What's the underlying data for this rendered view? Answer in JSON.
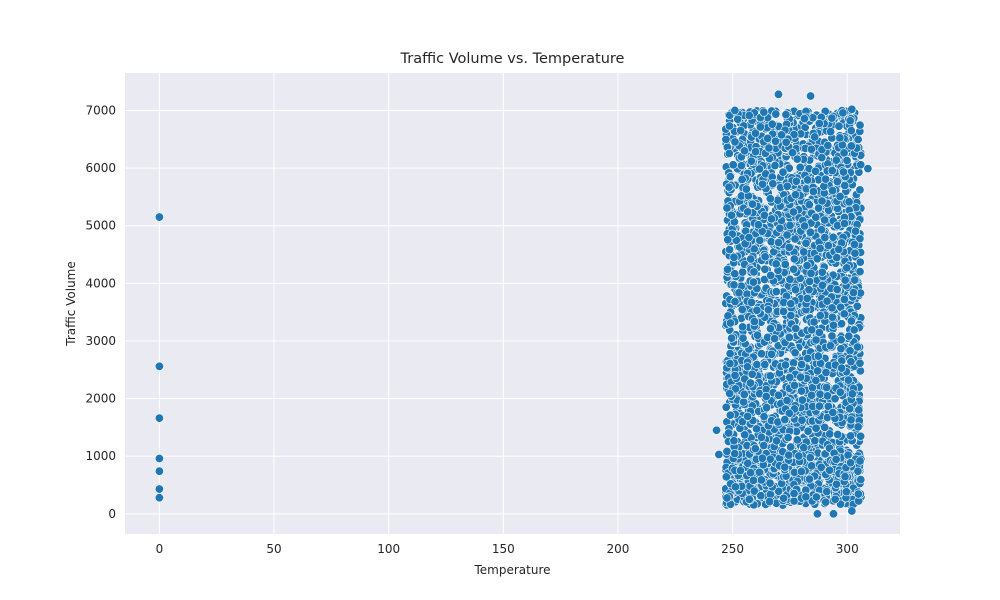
{
  "chart_data": {
    "type": "scatter",
    "title": "Traffic Volume vs. Temperature",
    "xlabel": "Temperature",
    "ylabel": "Traffic Volume",
    "xlim": [
      -15,
      323
    ],
    "ylim": [
      -350,
      7650
    ],
    "xticks": [
      0,
      50,
      100,
      150,
      200,
      250,
      300
    ],
    "yticks": [
      0,
      1000,
      2000,
      3000,
      4000,
      5000,
      6000,
      7000
    ],
    "grid": true,
    "background": "#eaeaf2",
    "marker_color": "#1f77b4",
    "outliers": [
      {
        "x": 0,
        "y": 5150
      },
      {
        "x": 0,
        "y": 2560
      },
      {
        "x": 0,
        "y": 1660
      },
      {
        "x": 0,
        "y": 960
      },
      {
        "x": 0,
        "y": 740
      },
      {
        "x": 0,
        "y": 430
      },
      {
        "x": 0,
        "y": 280
      }
    ],
    "cluster": {
      "x_range": [
        243,
        309
      ],
      "y_range": [
        0,
        7280
      ],
      "description_points": [
        {
          "x": 251,
          "y": 7000
        },
        {
          "x": 270,
          "y": 7280
        },
        {
          "x": 284,
          "y": 7250
        },
        {
          "x": 302,
          "y": 7020
        },
        {
          "x": 309,
          "y": 5990
        },
        {
          "x": 243,
          "y": 1450
        },
        {
          "x": 244,
          "y": 1030
        },
        {
          "x": 287,
          "y": 0
        },
        {
          "x": 294,
          "y": 0
        },
        {
          "x": 302,
          "y": 50
        }
      ]
    }
  }
}
